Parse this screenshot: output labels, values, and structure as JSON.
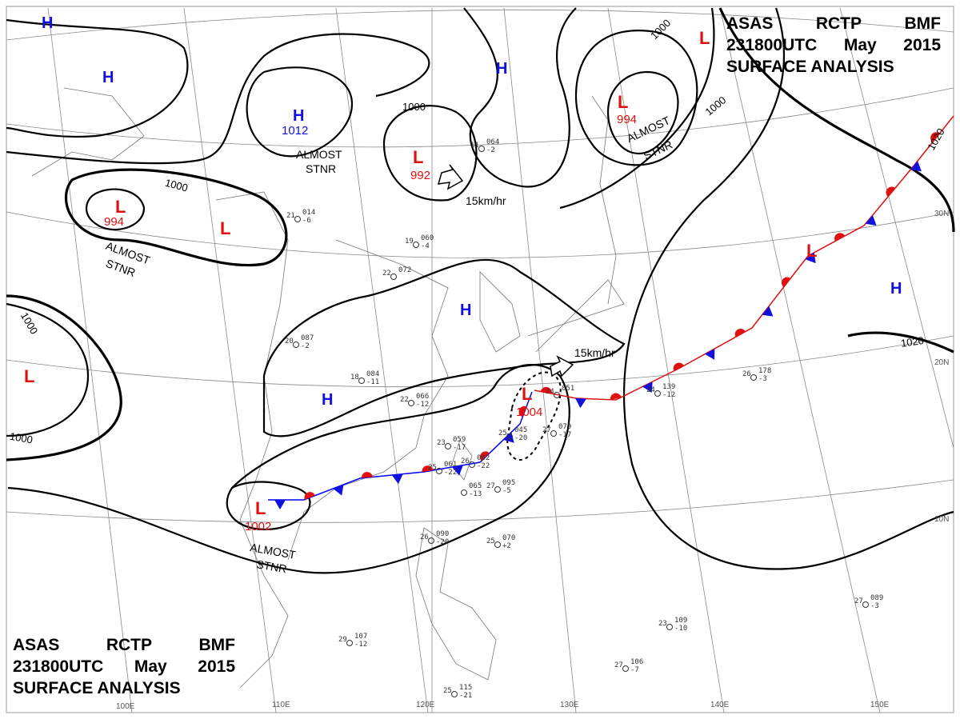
{
  "header": {
    "line1": [
      "ASAS",
      "RCTP",
      "BMF"
    ],
    "line2": [
      "231800UTC",
      "May",
      "2015"
    ],
    "line3": "SURFACE  ANALYSIS"
  },
  "longitudes": [
    "100E",
    "110E",
    "120E",
    "130E",
    "140E",
    "150E"
  ],
  "latitudes": [
    "30N",
    "20N",
    "10N"
  ],
  "highs": [
    {
      "symbol": "H",
      "pressure": ""
    },
    {
      "symbol": "H",
      "pressure": ""
    },
    {
      "symbol": "H",
      "pressure": "1012"
    },
    {
      "symbol": "H",
      "pressure": ""
    },
    {
      "symbol": "H",
      "pressure": ""
    },
    {
      "symbol": "H",
      "pressure": ""
    },
    {
      "symbol": "H",
      "pressure": ""
    }
  ],
  "lows": [
    {
      "symbol": "L",
      "pressure": ""
    },
    {
      "symbol": "L",
      "pressure": "994"
    },
    {
      "symbol": "L",
      "pressure": "992"
    },
    {
      "symbol": "L",
      "pressure": "994"
    },
    {
      "symbol": "L",
      "pressure": ""
    },
    {
      "symbol": "L",
      "pressure": ""
    },
    {
      "symbol": "L",
      "pressure": "1002"
    },
    {
      "symbol": "L",
      "pressure": "1004"
    },
    {
      "symbol": "L",
      "pressure": ""
    }
  ],
  "isobar_labels": [
    "1000",
    "1000",
    "1000",
    "1020",
    "1000",
    "1000",
    "1000",
    "1020"
  ],
  "annotations": {
    "almost_stnr": [
      "ALMOST",
      "STNR"
    ],
    "motion": "15km/hr"
  },
  "stations": [
    {
      "t": "24",
      "p": "051",
      "d": ""
    },
    {
      "t": "25",
      "p": "045",
      "d": "-20"
    },
    {
      "t": "23",
      "p": "059",
      "d": "-17"
    },
    {
      "t": "26",
      "p": "062",
      "d": "-22"
    },
    {
      "t": "22",
      "p": "066",
      "d": "-12"
    },
    {
      "t": "27",
      "p": "079",
      "d": "-17"
    },
    {
      "t": "25",
      "p": "061",
      "d": "-22"
    },
    {
      "t": "",
      "p": "065",
      "d": "-13"
    },
    {
      "t": "27",
      "p": "095",
      "d": "-5"
    },
    {
      "t": "18",
      "p": "084",
      "d": "-11"
    },
    {
      "t": "20",
      "p": "087",
      "d": "-2"
    },
    {
      "t": "19",
      "p": "060",
      "d": "-4"
    },
    {
      "t": "22",
      "p": "072",
      "d": ""
    },
    {
      "t": "26",
      "p": "178",
      "d": "-3"
    },
    {
      "t": "24",
      "p": "139",
      "d": "-12"
    },
    {
      "t": "25",
      "p": "070",
      "d": "+2"
    },
    {
      "t": "26",
      "p": "090",
      "d": "-20"
    },
    {
      "t": "29",
      "p": "107",
      "d": "-12"
    },
    {
      "t": "27",
      "p": "106",
      "d": "-7"
    },
    {
      "t": "23",
      "p": "109",
      "d": "-10"
    },
    {
      "t": "25",
      "p": "115",
      "d": "-21"
    },
    {
      "t": "21",
      "p": "014",
      "d": "-6"
    },
    {
      "t": "11",
      "p": "064",
      "d": "-2"
    },
    {
      "t": "27",
      "p": "089",
      "d": "-3"
    }
  ]
}
